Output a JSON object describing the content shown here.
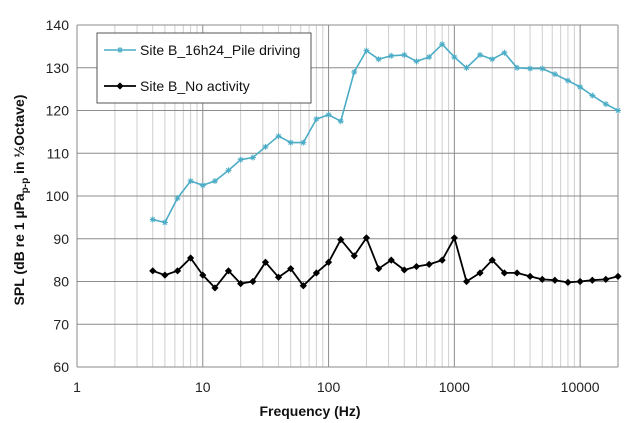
{
  "chart_data": {
    "type": "line",
    "title": "",
    "xlabel": "Frequency (Hz)",
    "ylabel_parts": [
      "SPL (dB re 1 µPa",
      "p-p",
      " in ⅓Octave)"
    ],
    "x_scale": "log",
    "xlim": [
      1,
      20000
    ],
    "ylim": [
      60,
      140
    ],
    "x_ticks": [
      1,
      10,
      100,
      1000,
      10000
    ],
    "x_tick_labels": [
      "1",
      "10",
      "100",
      "1000",
      "10000"
    ],
    "y_ticks": [
      60,
      70,
      80,
      90,
      100,
      110,
      120,
      130,
      140
    ],
    "y_tick_labels": [
      "60",
      "70",
      "80",
      "90",
      "100",
      "110",
      "120",
      "130",
      "140"
    ],
    "grid": "vertical major and minor on log x axis; horizontal major",
    "legend_position": "top-left",
    "x": [
      4,
      5,
      6.3,
      8,
      10,
      12.5,
      16,
      20,
      25,
      31.5,
      40,
      50,
      63,
      80,
      100,
      125,
      160,
      200,
      250,
      315,
      400,
      500,
      630,
      800,
      1000,
      1250,
      1600,
      2000,
      2500,
      3150,
      4000,
      5000,
      6300,
      8000,
      10000,
      12500,
      16000,
      20000
    ],
    "series": [
      {
        "name": "Site B_16h24_Pile driving",
        "color": "#4bacc6",
        "marker": "asterisk",
        "values": [
          94.5,
          93.8,
          99.5,
          103.5,
          102.5,
          103.5,
          106.0,
          108.5,
          109.0,
          111.5,
          114.0,
          112.5,
          112.5,
          118.0,
          119.0,
          117.5,
          129.0,
          134.0,
          132.0,
          132.8,
          133.0,
          131.5,
          132.5,
          135.5,
          132.5,
          130.0,
          133.0,
          132.0,
          133.5,
          130.0,
          129.8,
          129.8,
          128.5,
          127.0,
          125.5,
          123.5,
          121.5,
          120.0
        ]
      },
      {
        "name": "Site B_No activity",
        "color": "#000000",
        "marker": "diamond",
        "values": [
          82.5,
          81.5,
          82.5,
          85.5,
          81.5,
          78.5,
          82.5,
          79.5,
          80.0,
          84.5,
          81.0,
          83.0,
          79.0,
          82.0,
          84.5,
          89.8,
          86.0,
          90.2,
          83.0,
          85.0,
          82.7,
          83.5,
          84.0,
          85.0,
          90.2,
          80.0,
          82.0,
          85.0,
          82.0,
          82.0,
          81.2,
          80.5,
          80.3,
          79.8,
          80.0,
          80.3,
          80.5,
          81.2
        ]
      }
    ]
  }
}
